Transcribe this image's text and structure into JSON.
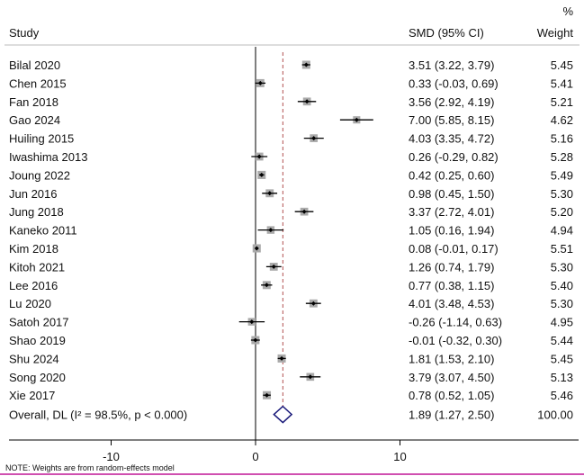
{
  "chart_data": {
    "type": "forest",
    "headers": {
      "study": "Study",
      "effect": "SMD (95% CI)",
      "weight_top": "%",
      "weight": "Weight"
    },
    "studies": [
      {
        "name": "Bilal 2020",
        "est": 3.51,
        "lo": 3.22,
        "hi": 3.79,
        "ci": "3.51 (3.22, 3.79)",
        "weight": "5.45"
      },
      {
        "name": "Chen 2015",
        "est": 0.33,
        "lo": -0.03,
        "hi": 0.69,
        "ci": "0.33 (-0.03, 0.69)",
        "weight": "5.41"
      },
      {
        "name": "Fan 2018",
        "est": 3.56,
        "lo": 2.92,
        "hi": 4.19,
        "ci": "3.56 (2.92, 4.19)",
        "weight": "5.21"
      },
      {
        "name": "Gao 2024",
        "est": 7.0,
        "lo": 5.85,
        "hi": 8.15,
        "ci": "7.00 (5.85, 8.15)",
        "weight": "4.62"
      },
      {
        "name": "Huiling 2015",
        "est": 4.03,
        "lo": 3.35,
        "hi": 4.72,
        "ci": "4.03 (3.35, 4.72)",
        "weight": "5.16"
      },
      {
        "name": "Iwashima 2013",
        "est": 0.26,
        "lo": -0.29,
        "hi": 0.82,
        "ci": "0.26 (-0.29, 0.82)",
        "weight": "5.28"
      },
      {
        "name": "Joung 2022",
        "est": 0.42,
        "lo": 0.25,
        "hi": 0.6,
        "ci": "0.42 (0.25, 0.60)",
        "weight": "5.49"
      },
      {
        "name": "Jun 2016",
        "est": 0.98,
        "lo": 0.45,
        "hi": 1.5,
        "ci": "0.98 (0.45, 1.50)",
        "weight": "5.30"
      },
      {
        "name": "Jung 2018",
        "est": 3.37,
        "lo": 2.72,
        "hi": 4.01,
        "ci": "3.37 (2.72, 4.01)",
        "weight": "5.20"
      },
      {
        "name": "Kaneko 2011",
        "est": 1.05,
        "lo": 0.16,
        "hi": 1.94,
        "ci": "1.05 (0.16, 1.94)",
        "weight": "4.94"
      },
      {
        "name": "Kim 2018",
        "est": 0.08,
        "lo": -0.01,
        "hi": 0.17,
        "ci": "0.08 (-0.01, 0.17)",
        "weight": "5.51"
      },
      {
        "name": "Kitoh 2021",
        "est": 1.26,
        "lo": 0.74,
        "hi": 1.79,
        "ci": "1.26 (0.74, 1.79)",
        "weight": "5.30"
      },
      {
        "name": "Lee 2016",
        "est": 0.77,
        "lo": 0.38,
        "hi": 1.15,
        "ci": "0.77 (0.38, 1.15)",
        "weight": "5.40"
      },
      {
        "name": "Lu 2020",
        "est": 4.01,
        "lo": 3.48,
        "hi": 4.53,
        "ci": "4.01 (3.48, 4.53)",
        "weight": "5.30"
      },
      {
        "name": "Satoh 2017",
        "est": -0.26,
        "lo": -1.14,
        "hi": 0.63,
        "ci": "-0.26 (-1.14, 0.63)",
        "weight": "4.95"
      },
      {
        "name": "Shao 2019",
        "est": -0.01,
        "lo": -0.32,
        "hi": 0.3,
        "ci": "-0.01 (-0.32, 0.30)",
        "weight": "5.44"
      },
      {
        "name": "Shu 2024",
        "est": 1.81,
        "lo": 1.53,
        "hi": 2.1,
        "ci": "1.81 (1.53, 2.10)",
        "weight": "5.45"
      },
      {
        "name": "Song 2020",
        "est": 3.79,
        "lo": 3.07,
        "hi": 4.5,
        "ci": "3.79 (3.07, 4.50)",
        "weight": "5.13"
      },
      {
        "name": "Xie 2017",
        "est": 0.78,
        "lo": 0.52,
        "hi": 1.05,
        "ci": "0.78 (0.52, 1.05)",
        "weight": "5.46"
      }
    ],
    "overall": {
      "name": "Overall, DL (I² = 98.5%, p < 0.000)",
      "est": 1.89,
      "lo": 1.27,
      "hi": 2.5,
      "ci": "1.89 (1.27, 2.50)",
      "weight": "100.00"
    },
    "x_ticks": [
      -10,
      0,
      10
    ],
    "x_tick_labels": [
      "-10",
      "0",
      "10"
    ],
    "note": "NOTE: Weights are from random-effects model",
    "colors": {
      "diamond": "#1a1a7a",
      "reference_line": "#b05050",
      "box": "#aaaaaa",
      "accent_border": "#d050b0"
    }
  }
}
